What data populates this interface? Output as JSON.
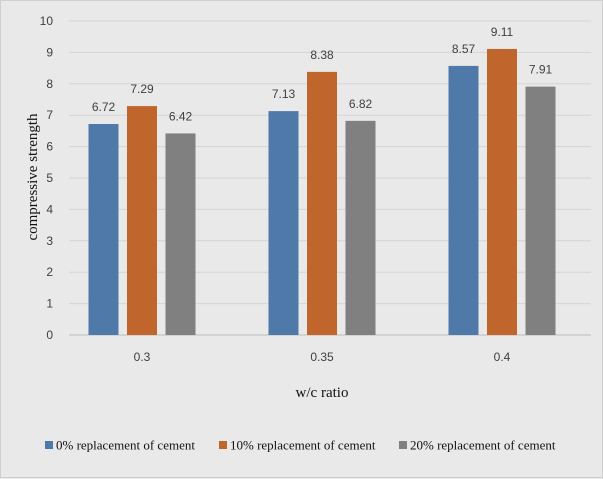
{
  "chart_data": {
    "type": "bar",
    "title": "",
    "xlabel": "w/c ratio",
    "ylabel": "compressive strength",
    "categories": [
      "0.3",
      "0.35",
      "0.4"
    ],
    "series": [
      {
        "name": "0% replacement of cement",
        "color": "#4e79a8",
        "values": [
          6.72,
          7.13,
          8.57
        ],
        "labels": [
          "6.72",
          "7.13",
          "8.57"
        ]
      },
      {
        "name": "10% replacement of cement",
        "color": "#c0652c",
        "values": [
          7.29,
          8.38,
          9.11
        ],
        "labels": [
          "7.29",
          "8.38",
          "9.11"
        ]
      },
      {
        "name": "20% replacement of cement",
        "color": "#808080",
        "values": [
          6.42,
          6.82,
          7.91
        ],
        "labels": [
          "6.42",
          "6.82",
          "7.91"
        ]
      }
    ],
    "ylim": [
      0,
      10
    ],
    "yticks": [
      "0",
      "1",
      "2",
      "3",
      "4",
      "5",
      "6",
      "7",
      "8",
      "9",
      "10"
    ],
    "grid": true,
    "legend": "bottom"
  }
}
